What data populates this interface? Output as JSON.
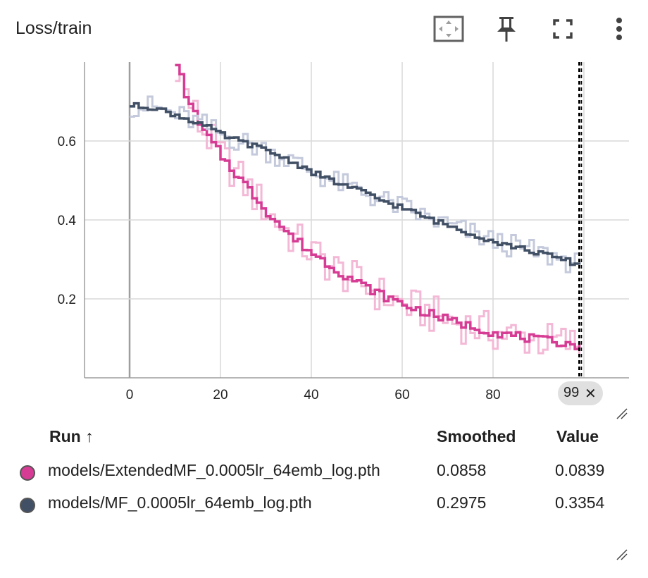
{
  "card": {
    "title": "Loss/train",
    "toolbar": [
      {
        "name": "fit-domain-button",
        "icon": "fit-to-data-icon"
      },
      {
        "name": "pin-button",
        "icon": "pin-icon"
      },
      {
        "name": "fullscreen-button",
        "icon": "fullscreen-icon"
      },
      {
        "name": "more-options-button",
        "icon": "more-vert-icon"
      }
    ]
  },
  "colors": {
    "series_a": "#d63c94",
    "series_a_raw": "#f3b8d6",
    "series_b": "#425066",
    "series_b_raw": "#c4cadb",
    "grid": "#d9d9d9",
    "axis": "#9e9e9e"
  },
  "chart_data": {
    "type": "line",
    "title": "Loss/train",
    "xlabel": "",
    "ylabel": "",
    "xlim": [
      -10,
      110
    ],
    "ylim": [
      0,
      0.8
    ],
    "x_ticks": [
      "0",
      "20",
      "40",
      "60",
      "80"
    ],
    "y_ticks": [
      "0.2",
      "0.4",
      "0.6"
    ],
    "grid": true,
    "cursor_step": "99",
    "series": [
      {
        "name": "models/ExtendedMF_0.0005lr_64emb_log.pth",
        "x": [
          10,
          12,
          15,
          20,
          25,
          30,
          35,
          40,
          45,
          50,
          55,
          60,
          65,
          70,
          75,
          80,
          85,
          90,
          95,
          99
        ],
        "y": [
          0.8,
          0.72,
          0.64,
          0.56,
          0.49,
          0.42,
          0.36,
          0.315,
          0.275,
          0.24,
          0.21,
          0.185,
          0.165,
          0.145,
          0.13,
          0.115,
          0.105,
          0.095,
          0.09,
          0.08
        ]
      },
      {
        "name": "models/MF_0.0005lr_64emb_log.pth",
        "x": [
          0,
          5,
          10,
          15,
          20,
          25,
          30,
          35,
          40,
          45,
          50,
          55,
          60,
          65,
          70,
          75,
          80,
          85,
          90,
          95,
          99
        ],
        "y": [
          0.69,
          0.685,
          0.665,
          0.645,
          0.615,
          0.595,
          0.575,
          0.55,
          0.52,
          0.495,
          0.475,
          0.45,
          0.43,
          0.405,
          0.385,
          0.365,
          0.345,
          0.33,
          0.315,
          0.3,
          0.285
        ]
      }
    ]
  },
  "legend_table": {
    "headers": {
      "run": "Run ↑",
      "smoothed": "Smoothed",
      "value": "Value"
    },
    "rows": [
      {
        "run": "models/ExtendedMF_0.0005lr_64emb_log.pth",
        "smoothed": "0.0858",
        "value": "0.0839",
        "color": "#d63c94"
      },
      {
        "run": "models/MF_0.0005lr_64emb_log.pth",
        "smoothed": "0.2975",
        "value": "0.3354",
        "color": "#425066"
      }
    ]
  }
}
